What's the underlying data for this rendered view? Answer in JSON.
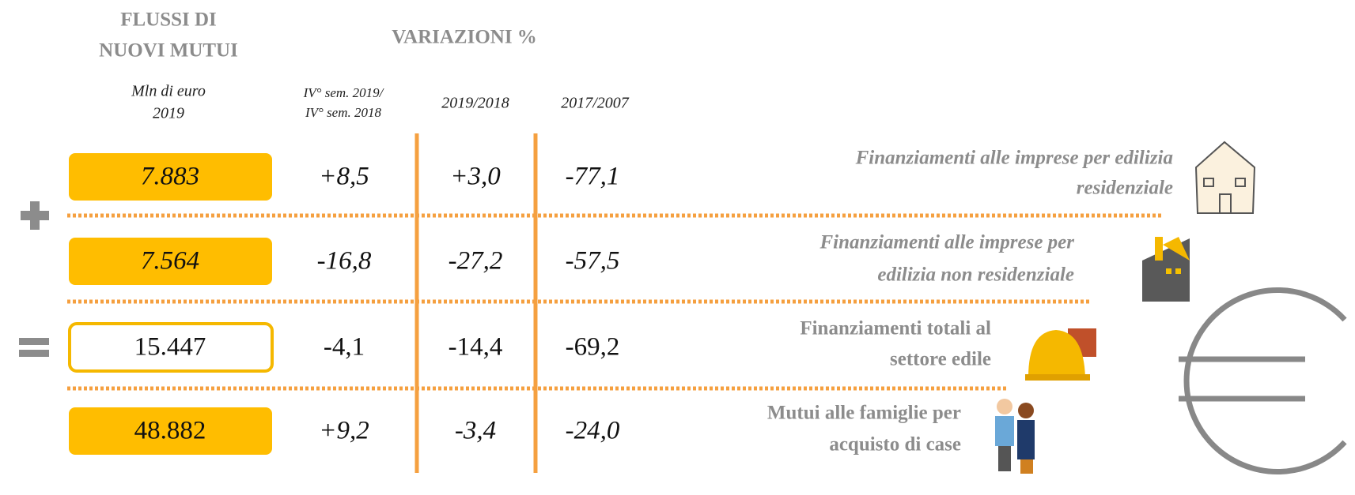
{
  "header": {
    "title": [
      "FLUSSI DI",
      "NUOVI MUTUI"
    ],
    "variations": "VARIAZIONI %"
  },
  "columns": [
    [
      "Mln di euro",
      "2019"
    ],
    [
      "IV° sem. 2019/",
      "IV° sem. 2018"
    ],
    [
      "2019/2018"
    ],
    [
      "2017/2007"
    ]
  ],
  "rows": [
    {
      "value": "7.883",
      "changes": [
        "+8,5",
        "+3,0",
        "-77,1"
      ],
      "label": [
        "Finanziamenti alle imprese per edilizia",
        "residenziale"
      ],
      "box": "filled",
      "italic": true
    },
    {
      "value": "7.564",
      "changes": [
        "-16,8",
        "-27,2",
        "-57,5"
      ],
      "label": [
        "Finanziamenti alle imprese per",
        "edilizia non residenziale"
      ],
      "box": "filled",
      "italic": true
    },
    {
      "value": "15.447",
      "changes": [
        "-4,1",
        "-14,4",
        "-69,2"
      ],
      "label": [
        "Finanziamenti totali al",
        "settore edile"
      ],
      "box": "outline",
      "italic": false
    },
    {
      "value": "48.882",
      "changes": [
        "+9,2",
        "-3,4",
        "-24,0"
      ],
      "label": [
        "Mutui alle famiglie per",
        "acquisto di case"
      ],
      "box": "filled",
      "italic": false,
      "changes_italic": true
    }
  ]
}
